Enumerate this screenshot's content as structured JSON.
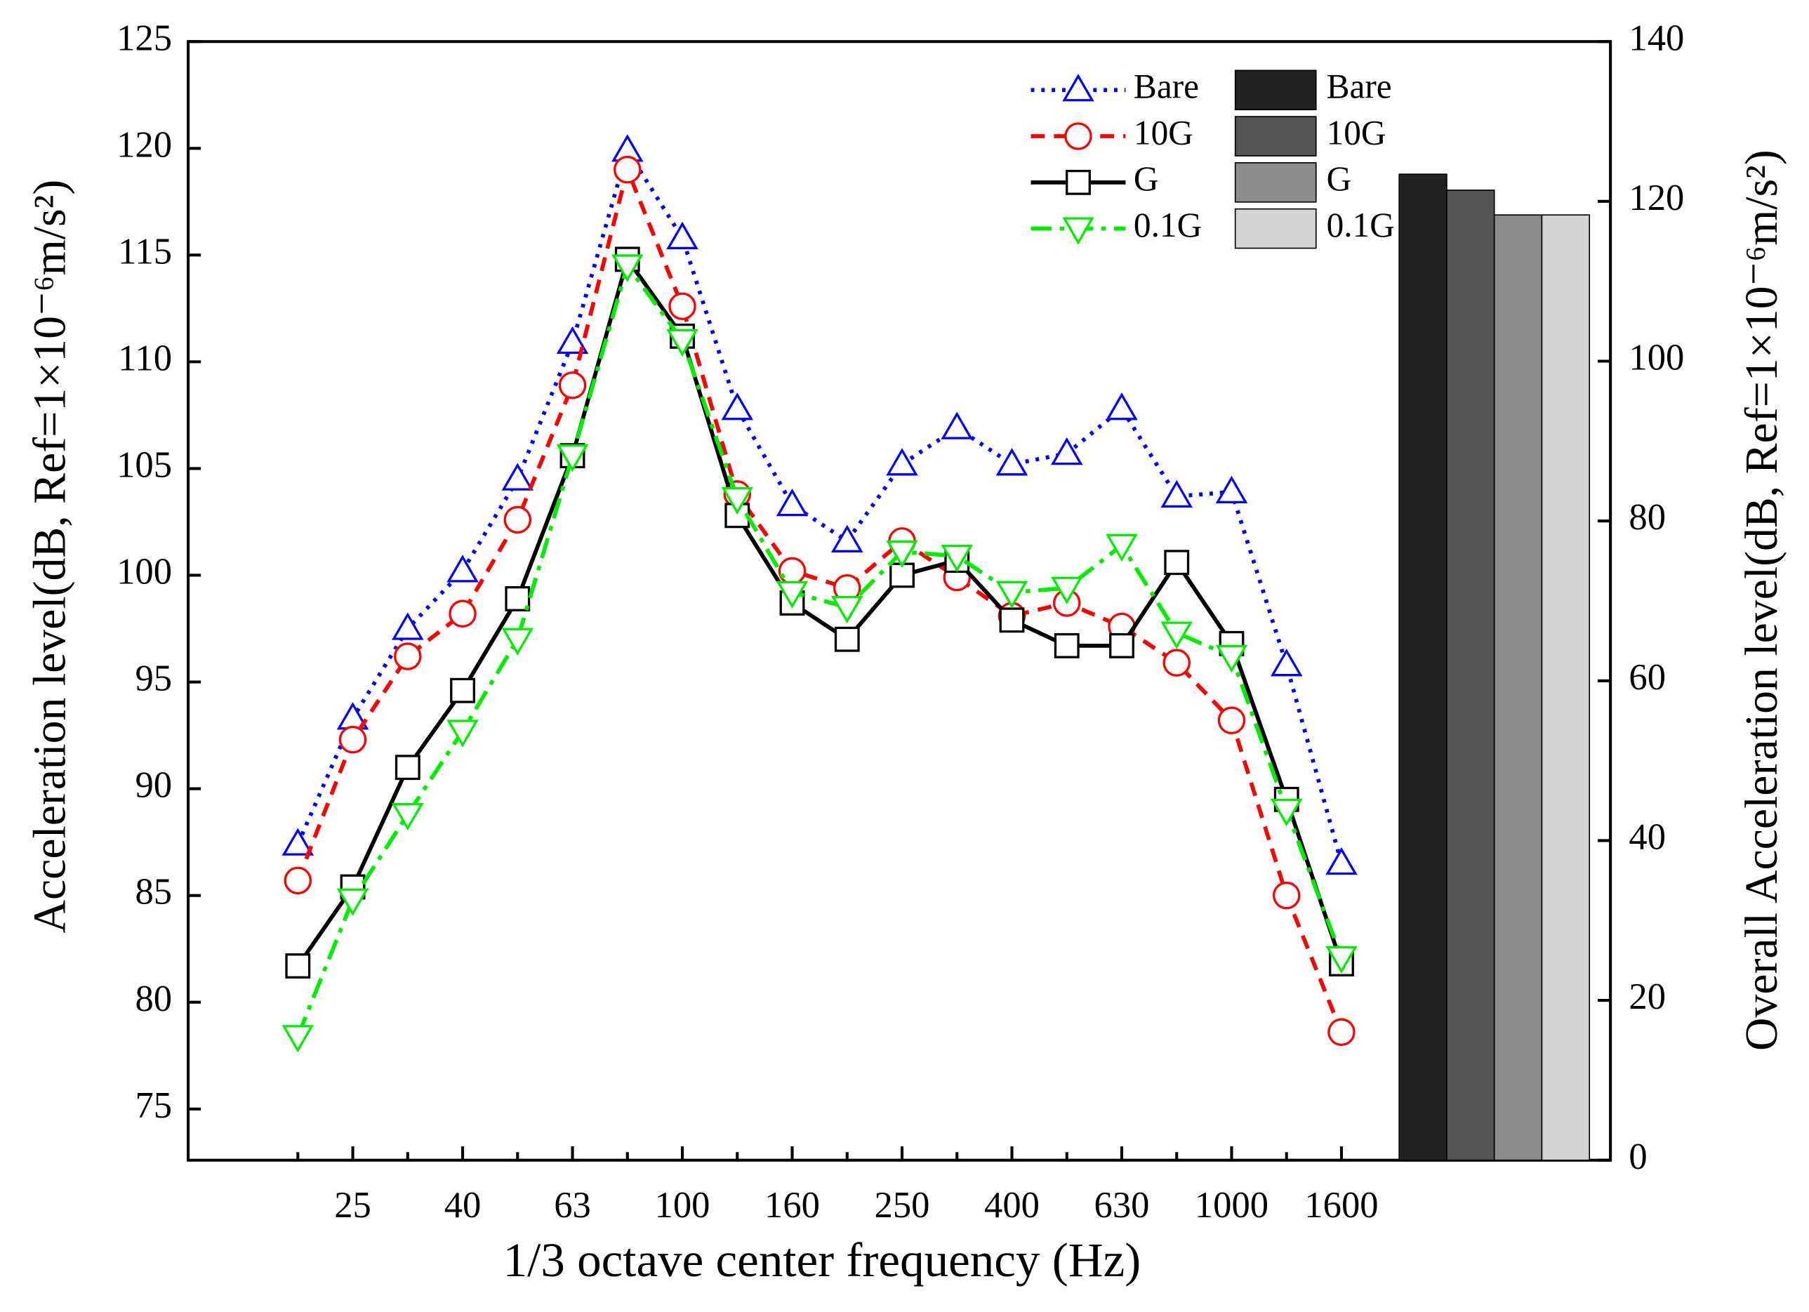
{
  "chart_data": {
    "type": "line",
    "xlabel": "1/3 octave center frequency (Hz)",
    "ylabel": "Acceleration level(dB, Ref=1×10⁻⁶m/s²)",
    "y2label": "Overall Acceleration level(dB, Ref=1×10⁻⁶m/s²)",
    "categories": [
      null,
      "25",
      null,
      "40",
      null,
      "63",
      null,
      "100",
      null,
      "160",
      null,
      "250",
      null,
      "400",
      null,
      "630",
      null,
      "1000",
      null,
      "1600"
    ],
    "ylim": [
      72.6,
      125
    ],
    "yticks": [
      75,
      80,
      85,
      90,
      95,
      100,
      105,
      110,
      115,
      120,
      125
    ],
    "y2lim": [
      0,
      140
    ],
    "y2ticks": [
      0,
      20,
      40,
      60,
      80,
      100,
      120,
      140
    ],
    "series": [
      {
        "name": "Bare",
        "color": "#0000ff",
        "linestyle": "dotted",
        "marker": "triangle-up",
        "values": [
          87.4,
          93.3,
          97.5,
          100.2,
          104.5,
          110.9,
          119.9,
          115.8,
          107.8,
          103.3,
          101.6,
          105.2,
          106.9,
          105.2,
          105.7,
          107.8,
          103.7,
          103.9,
          95.8,
          86.5
        ]
      },
      {
        "name": "10G",
        "color": "#ff0000",
        "linestyle": "dashed",
        "marker": "circle",
        "values": [
          85.7,
          92.3,
          96.2,
          98.2,
          102.6,
          108.9,
          119.0,
          112.6,
          103.8,
          100.2,
          99.4,
          101.6,
          99.9,
          98.1,
          98.7,
          97.6,
          95.9,
          93.2,
          85.0,
          78.6
        ]
      },
      {
        "name": "G",
        "color": "#000000",
        "linestyle": "solid",
        "marker": "square",
        "values": [
          81.7,
          85.4,
          91.0,
          94.6,
          98.9,
          105.6,
          114.8,
          111.2,
          102.8,
          98.7,
          97.0,
          100.0,
          100.7,
          97.9,
          96.7,
          96.7,
          100.6,
          96.8,
          89.5,
          81.8
        ]
      },
      {
        "name": "0.1G",
        "color": "#00ee00",
        "linestyle": "dashdot",
        "marker": "triangle-down",
        "values": [
          78.4,
          84.8,
          88.8,
          92.7,
          97.0,
          105.6,
          114.5,
          111.0,
          103.6,
          99.2,
          98.5,
          101.1,
          100.9,
          99.2,
          99.4,
          101.4,
          97.3,
          96.2,
          89.0,
          82.1
        ]
      }
    ],
    "overall": {
      "type": "bar",
      "axis": "y2",
      "categories": [
        "Bare",
        "10G",
        "G",
        "0.1G"
      ],
      "values": [
        123.4,
        121.4,
        118.3,
        118.3
      ],
      "colors": [
        "#222222",
        "#555555",
        "#8c8c8c",
        "#d3d3d3"
      ]
    }
  }
}
